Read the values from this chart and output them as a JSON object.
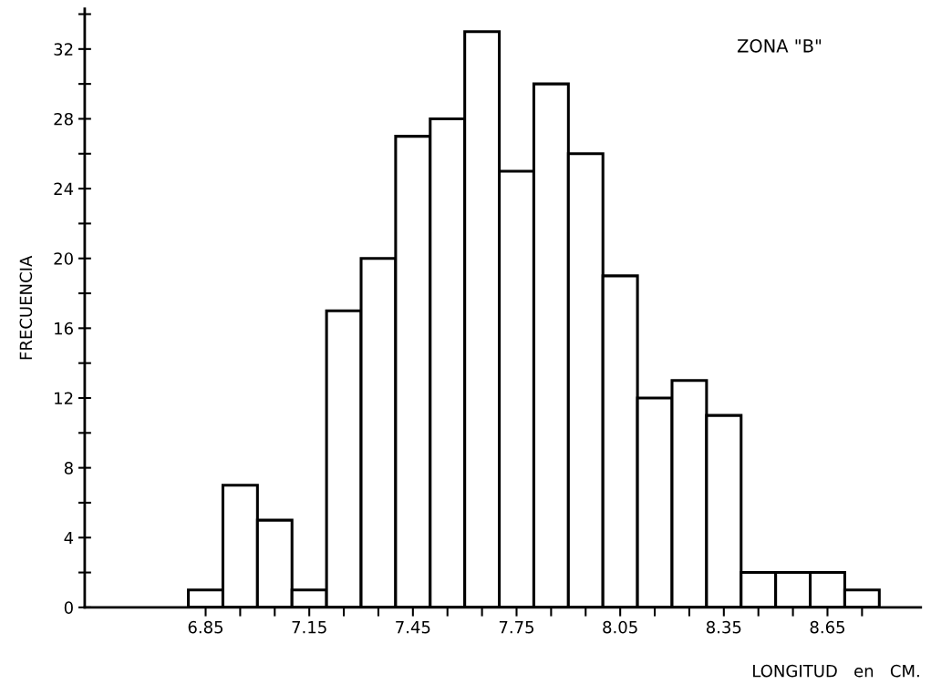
{
  "chart_data": {
    "type": "histogram",
    "xlabel": "LONGITUD   en   CM.",
    "ylabel": "FRECUENCIA",
    "annotations": [
      "ZONA \"B\""
    ],
    "bins": [
      6.8,
      6.9,
      7.0,
      7.1,
      7.2,
      7.3,
      7.4,
      7.5,
      7.6,
      7.7,
      7.8,
      7.9,
      8.0,
      8.1,
      8.2,
      8.3,
      8.4,
      8.5,
      8.6,
      8.7,
      8.8
    ],
    "values": [
      1,
      7,
      5,
      1,
      17,
      20,
      27,
      28,
      33,
      25,
      30,
      26,
      19,
      12,
      13,
      11,
      2,
      2,
      2,
      1
    ],
    "color": "#ffffff",
    "xlim": [
      6.5,
      8.92
    ],
    "xticks": [
      6.85,
      {
        "value": 6.95,
        "label": null
      },
      {
        "value": 7.05,
        "label": null
      },
      {
        "value": 7.15,
        "label": "7.15"
      },
      {
        "value": 7.25,
        "label": null
      },
      {
        "value": 7.35,
        "label": null
      },
      7.45,
      {
        "value": 7.55,
        "label": null
      },
      {
        "value": 7.65,
        "label": null
      },
      7.75,
      {
        "value": 7.85,
        "label": null
      },
      {
        "value": 7.95,
        "label": null
      },
      8.05,
      {
        "value": 8.15,
        "label": null
      },
      {
        "value": 8.25,
        "label": null
      },
      8.35,
      {
        "value": 8.45,
        "label": null
      },
      {
        "value": 8.55,
        "label": null
      },
      8.65,
      {
        "value": 8.75,
        "label": null
      }
    ],
    "ylim": [
      0,
      34.3
    ],
    "yticks": [
      0,
      {
        "value": 2,
        "label": null
      },
      4,
      {
        "value": 6,
        "label": null
      },
      8,
      {
        "value": 10,
        "label": null
      },
      12,
      {
        "value": 14,
        "label": null
      },
      16,
      {
        "value": 18,
        "label": null
      },
      20,
      {
        "value": 22,
        "label": null
      },
      24,
      {
        "value": 26,
        "label": null
      },
      28,
      {
        "value": 30,
        "label": null
      },
      32,
      {
        "value": 34,
        "label": null
      }
    ],
    "grid": false,
    "legend": false
  }
}
